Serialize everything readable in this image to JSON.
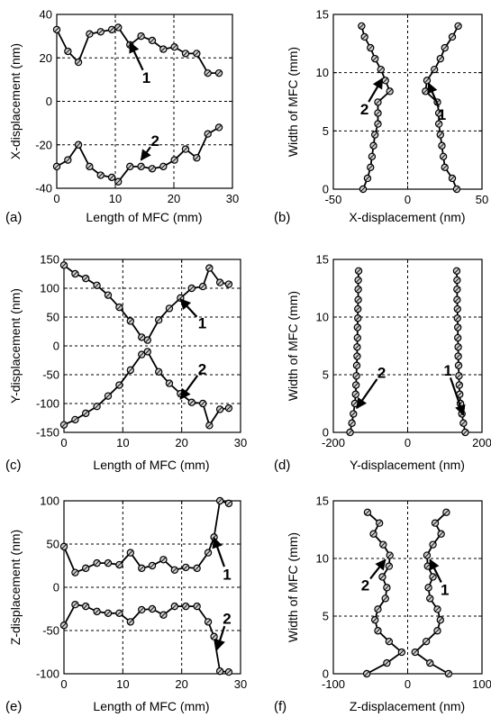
{
  "chart_data": [
    {
      "type": "line",
      "panel_label": "(a)",
      "xlabel": "Length of MFC (mm)",
      "ylabel": "X-displacement (nm)",
      "xlim": [
        0,
        30
      ],
      "ylim": [
        -40,
        40
      ],
      "xticks": [
        0,
        10,
        20,
        30
      ],
      "yticks": [
        -40,
        -20,
        0,
        20,
        40
      ],
      "xtick_labels": [
        "0",
        "10",
        "20",
        "30"
      ],
      "ytick_labels": [
        "-40",
        "-20",
        "0",
        "20",
        "40"
      ],
      "grid": true,
      "orient": "h",
      "series": [
        {
          "name": "1",
          "x": [
            0,
            1.9,
            3.7,
            5.6,
            7.5,
            9.4,
            10.5,
            12.5,
            14.4,
            16.3,
            18.2,
            20.1,
            22,
            23.9,
            25.8,
            27.7
          ],
          "y": [
            33,
            23,
            18,
            31,
            32,
            33,
            34,
            26,
            30,
            28,
            24,
            25,
            22,
            22,
            13,
            13
          ]
        },
        {
          "name": "2",
          "x": [
            0,
            1.9,
            3.7,
            5.6,
            7.5,
            9.4,
            10.5,
            12.5,
            14.4,
            16.3,
            18.2,
            20.1,
            22,
            23.9,
            25.8,
            27.7
          ],
          "y": [
            -30,
            -27,
            -20,
            -30,
            -34,
            -35,
            -37,
            -30,
            -30,
            -31,
            -30,
            -27,
            -22,
            -26,
            -15,
            -12
          ]
        }
      ],
      "annotations": [
        {
          "text": "1",
          "tx": 15.3,
          "ty": 11,
          "ax": 12.5,
          "ay": 27
        },
        {
          "text": "2",
          "tx": 16.8,
          "ty": -18,
          "ax": 14.4,
          "ay": -27
        }
      ]
    },
    {
      "type": "line",
      "panel_label": "(b)",
      "xlabel": "X-displacement (nm)",
      "ylabel": "Width of MFC (mm)",
      "xlim": [
        -50,
        50
      ],
      "ylim": [
        0,
        15
      ],
      "xticks": [
        -50,
        0,
        50
      ],
      "yticks": [
        0,
        5,
        10,
        15
      ],
      "xtick_labels": [
        "-50",
        "0",
        "50"
      ],
      "ytick_labels": [
        "0",
        "5",
        "10",
        "15"
      ],
      "grid": true,
      "orient": "v",
      "series": [
        {
          "name": "1",
          "y": [
            0,
            0.93,
            1.87,
            2.8,
            3.73,
            4.67,
            5.6,
            6.53,
            7.47,
            8.4,
            9.33,
            10.27,
            11.2,
            12.13,
            13.07,
            14
          ],
          "x": [
            33,
            30,
            25,
            24,
            23,
            22,
            21,
            21,
            20,
            12,
            13,
            18,
            22,
            25,
            30,
            34
          ]
        },
        {
          "name": "2",
          "y": [
            0,
            0.93,
            1.87,
            2.8,
            3.73,
            4.67,
            5.6,
            6.53,
            7.47,
            8.4,
            9.33,
            10.27,
            11.2,
            12.13,
            13.07,
            14
          ],
          "x": [
            -30,
            -27,
            -25,
            -24,
            -23,
            -22,
            -20,
            -20,
            -20,
            -12,
            -15,
            -18,
            -22,
            -25,
            -29,
            -31
          ]
        }
      ],
      "annotations": [
        {
          "text": "1",
          "tx": 23,
          "ty": 6.4,
          "ax": 14,
          "ay": 9.1
        },
        {
          "text": "2",
          "tx": -29,
          "ty": 6.9,
          "ax": -17,
          "ay": 9.5
        }
      ]
    },
    {
      "type": "line",
      "panel_label": "(c)",
      "xlabel": "Length of MFC (mm)",
      "ylabel": "Y-displacement (nm)",
      "xlim": [
        0,
        30
      ],
      "ylim": [
        -150,
        150
      ],
      "xticks": [
        0,
        10,
        20,
        30
      ],
      "yticks": [
        -150,
        -100,
        -50,
        0,
        50,
        100,
        150
      ],
      "xtick_labels": [
        "0",
        "10",
        "20",
        "30"
      ],
      "ytick_labels": [
        "-150",
        "-100",
        "-50",
        "0",
        "50",
        "100",
        "150"
      ],
      "grid": true,
      "orient": "h",
      "series": [
        {
          "name": "1",
          "x": [
            0,
            1.9,
            3.7,
            5.6,
            7.5,
            9.4,
            11.3,
            13.2,
            14.2,
            16.1,
            17.9,
            19.8,
            21.7,
            23.6,
            24.7,
            26.5,
            28
          ],
          "y": [
            140,
            125,
            117,
            105,
            88,
            67,
            43,
            15,
            10,
            45,
            65,
            83,
            100,
            103,
            135,
            110,
            107
          ]
        },
        {
          "name": "2",
          "x": [
            0,
            1.9,
            3.7,
            5.6,
            7.5,
            9.4,
            11.3,
            13.2,
            14.2,
            16.1,
            17.9,
            19.8,
            21.7,
            23.6,
            24.7,
            26.5,
            28
          ],
          "y": [
            -137,
            -128,
            -117,
            -105,
            -87,
            -68,
            -42,
            -15,
            -10,
            -45,
            -65,
            -83,
            -98,
            -100,
            -138,
            -110,
            -108
          ]
        }
      ],
      "annotations": [
        {
          "text": "1",
          "tx": 23.5,
          "ty": 40,
          "ax": 19.8,
          "ay": 81
        },
        {
          "text": "2",
          "tx": 23.5,
          "ty": -40,
          "ax": 19.8,
          "ay": -92
        }
      ]
    },
    {
      "type": "line",
      "panel_label": "(d)",
      "xlabel": "Y-displacement (nm)",
      "ylabel": "Width of MFC (mm)",
      "xlim": [
        -200,
        200
      ],
      "ylim": [
        0,
        15
      ],
      "xticks": [
        -200,
        0,
        200
      ],
      "yticks": [
        0,
        5,
        10,
        15
      ],
      "xtick_labels": [
        "-200",
        "0",
        "200"
      ],
      "ytick_labels": [
        "0",
        "5",
        "10",
        "15"
      ],
      "grid": true,
      "orient": "v",
      "series": [
        {
          "name": "1",
          "y": [
            0,
            0.8,
            1.6,
            2.5,
            3.3,
            4.1,
            4.9,
            5.8,
            6.6,
            7.4,
            8.2,
            9.1,
            9.9,
            10.7,
            11.5,
            12.4,
            13.2,
            14
          ],
          "x": [
            155,
            150,
            146,
            142,
            140,
            139,
            138,
            137,
            136,
            136,
            135,
            135,
            134,
            134,
            133,
            133,
            133,
            132
          ]
        },
        {
          "name": "2",
          "y": [
            0,
            0.8,
            1.6,
            2.5,
            3.3,
            4.1,
            4.9,
            5.8,
            6.6,
            7.4,
            8.2,
            9.1,
            9.9,
            10.7,
            11.5,
            12.4,
            13.2,
            14
          ],
          "x": [
            -155,
            -150,
            -146,
            -142,
            -140,
            -139,
            -138,
            -137,
            -136,
            -136,
            -135,
            -135,
            -134,
            -134,
            -133,
            -133,
            -133,
            -132
          ]
        }
      ],
      "annotations": [
        {
          "text": "1",
          "tx": 108,
          "ty": 5.4,
          "ax": 150,
          "ay": 1.5
        },
        {
          "text": "2",
          "tx": -70,
          "ty": 5.2,
          "ax": -137,
          "ay": 2.1
        }
      ]
    },
    {
      "type": "line",
      "panel_label": "(e)",
      "xlabel": "Length of MFC (mm)",
      "ylabel": "Z-displacement (nm)",
      "xlim": [
        0,
        30
      ],
      "ylim": [
        -100,
        100
      ],
      "xticks": [
        0,
        10,
        20,
        30
      ],
      "yticks": [
        -100,
        -50,
        0,
        50,
        100
      ],
      "xtick_labels": [
        "0",
        "10",
        "20",
        "30"
      ],
      "ytick_labels": [
        "-100",
        "-50",
        "0",
        "50",
        "100"
      ],
      "grid": true,
      "orient": "h",
      "series": [
        {
          "name": "1",
          "x": [
            0,
            1.9,
            3.7,
            5.6,
            7.5,
            9.4,
            11.3,
            13.2,
            15,
            16.9,
            18.8,
            20.7,
            22.6,
            24.5,
            25.5,
            26.5,
            28
          ],
          "y": [
            47,
            17,
            22,
            28,
            28,
            26,
            40,
            22,
            25,
            32,
            20,
            23,
            22,
            40,
            58,
            100,
            97
          ]
        },
        {
          "name": "2",
          "x": [
            0,
            1.9,
            3.7,
            5.6,
            7.5,
            9.4,
            11.3,
            13.2,
            15,
            16.9,
            18.8,
            20.7,
            22.6,
            24.5,
            25.5,
            26.5,
            28
          ],
          "y": [
            -44,
            -20,
            -22,
            -28,
            -30,
            -30,
            -40,
            -26,
            -25,
            -32,
            -22,
            -22,
            -22,
            -40,
            -57,
            -97,
            -98
          ]
        }
      ],
      "annotations": [
        {
          "text": "1",
          "tx": 27.7,
          "ty": 15,
          "ax": 25.5,
          "ay": 57
        },
        {
          "text": "2",
          "tx": 27.7,
          "ty": -36,
          "ax": 26,
          "ay": -72
        }
      ]
    },
    {
      "type": "line",
      "panel_label": "(f)",
      "xlabel": "Z-displacement (nm)",
      "ylabel": "Width of MFC (mm)",
      "xlim": [
        -100,
        100
      ],
      "ylim": [
        0,
        15
      ],
      "xticks": [
        -100,
        0,
        100
      ],
      "yticks": [
        0,
        5,
        10,
        15
      ],
      "xtick_labels": [
        "-100",
        "0",
        "100"
      ],
      "ytick_labels": [
        "0",
        "5",
        "10",
        "15"
      ],
      "grid": true,
      "orient": "v",
      "series": [
        {
          "name": "1",
          "y": [
            0,
            0.93,
            1.87,
            2.8,
            3.73,
            4.67,
            5.6,
            6.53,
            7.47,
            8.4,
            9.33,
            10.27,
            11.2,
            12.13,
            13.07,
            14
          ],
          "x": [
            55,
            30,
            10,
            25,
            40,
            44,
            40,
            30,
            28,
            34,
            27,
            26,
            34,
            45,
            37,
            52
          ]
        },
        {
          "name": "2",
          "y": [
            0,
            0.93,
            1.87,
            2.8,
            3.73,
            4.67,
            5.6,
            6.53,
            7.47,
            8.4,
            9.33,
            10.27,
            11.2,
            12.13,
            13.07,
            14
          ],
          "x": [
            -55,
            -28,
            -8,
            -25,
            -40,
            -44,
            -40,
            -30,
            -28,
            -34,
            -25,
            -24,
            -33,
            -46,
            -38,
            -54
          ]
        }
      ],
      "annotations": [
        {
          "text": "1",
          "tx": 50,
          "ty": 7.3,
          "ax": 30,
          "ay": 9.9
        },
        {
          "text": "2",
          "tx": -57,
          "ty": 7.7,
          "ax": -30,
          "ay": 9.9
        }
      ]
    }
  ]
}
